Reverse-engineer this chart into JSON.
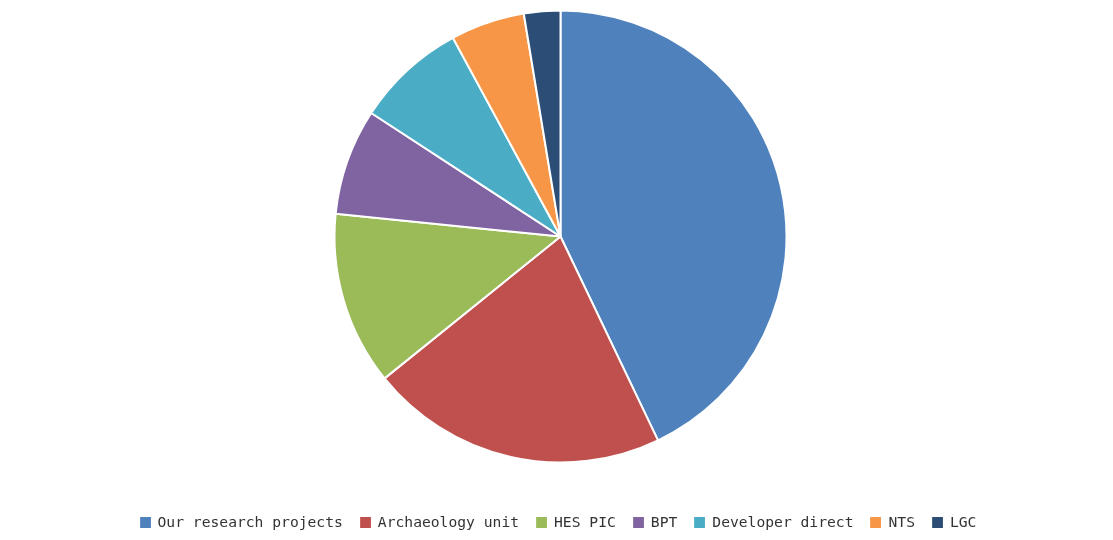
{
  "chart_data": {
    "type": "pie",
    "categories": [
      "Our research projects",
      "Archaeology unit",
      "HES PIC",
      "BPT",
      "Developer direct",
      "NTS",
      "LGC"
    ],
    "values": [
      42.9,
      21.3,
      12.4,
      7.6,
      7.9,
      5.3,
      2.6
    ],
    "colors": [
      "#4f81bd",
      "#c0504d",
      "#9bbb59",
      "#8064a2",
      "#4bacc6",
      "#f79646",
      "#2c4d75"
    ],
    "legend": "bottom"
  }
}
